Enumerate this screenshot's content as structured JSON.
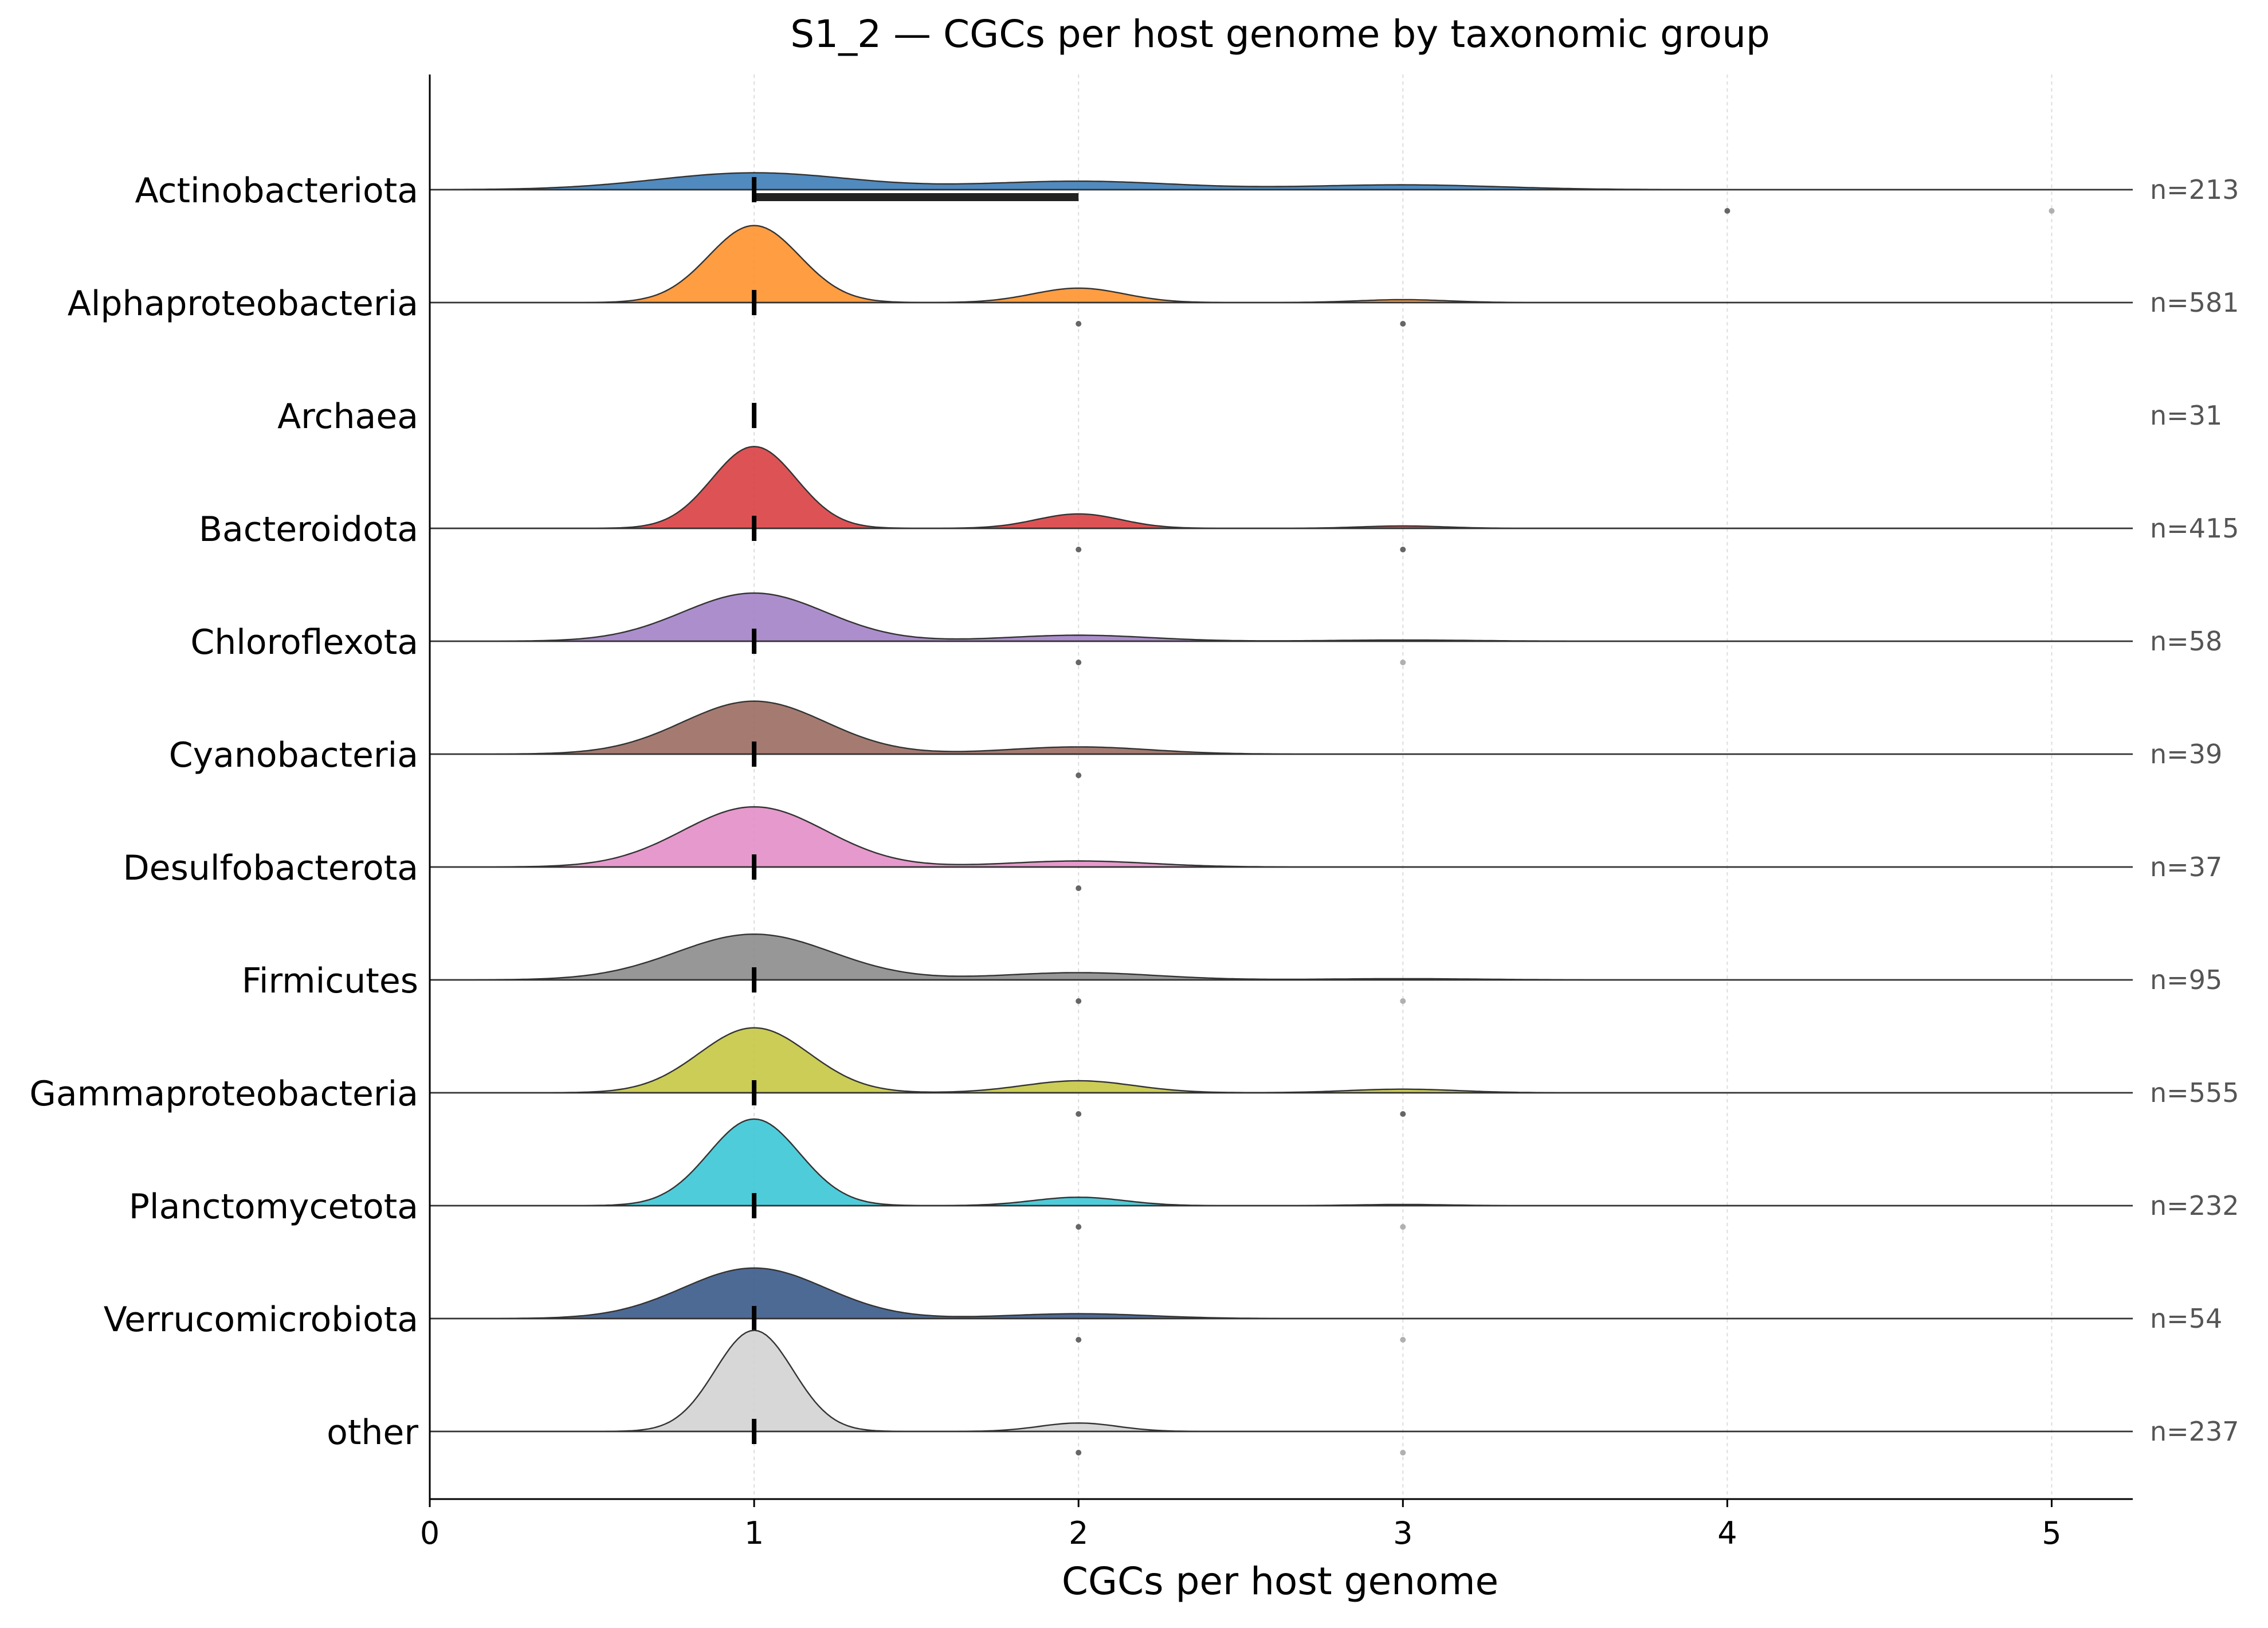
{
  "chart_data": {
    "type": "ridgeline",
    "title": "S1_2 — CGCs per host genome by taxonomic group",
    "xlabel": "CGCs per host genome",
    "ylabel": "",
    "xlim": [
      0,
      5.25
    ],
    "xticks": [
      0,
      1,
      2,
      3,
      4,
      5
    ],
    "grid": "vertical dotted lines at x ticks",
    "groups": [
      {
        "name": "Actinobacteriota",
        "n_label": "n=213",
        "color": "#3d7db8",
        "median": 1,
        "iqr": [
          1,
          2
        ],
        "peaks": [
          {
            "x": 1,
            "h": 0.07,
            "s": 0.3
          },
          {
            "x": 2,
            "h": 0.035,
            "s": 0.3
          },
          {
            "x": 3,
            "h": 0.02,
            "s": 0.3
          }
        ],
        "outliers": [
          4,
          5
        ],
        "outlier_shade": [
          "dark",
          "light"
        ]
      },
      {
        "name": "Alphaproteobacteria",
        "n_label": "n=581",
        "color": "#ff922e",
        "median": 1,
        "iqr": [
          1,
          1
        ],
        "peaks": [
          {
            "x": 1,
            "h": 0.32,
            "s": 0.14
          },
          {
            "x": 2,
            "h": 0.06,
            "s": 0.14
          },
          {
            "x": 3,
            "h": 0.012,
            "s": 0.14
          }
        ],
        "outliers": [
          2,
          3
        ],
        "outlier_shade": [
          "dark",
          "dark"
        ]
      },
      {
        "name": "Archaea",
        "n_label": "n=31",
        "color": "#2ca02c",
        "median": 1,
        "iqr": [
          1,
          1
        ],
        "peaks": [],
        "outliers": [],
        "outlier_shade": []
      },
      {
        "name": "Bacteroidota",
        "n_label": "n=415",
        "color": "#d94043",
        "median": 1,
        "iqr": [
          1,
          1
        ],
        "peaks": [
          {
            "x": 1,
            "h": 0.34,
            "s": 0.13
          },
          {
            "x": 2,
            "h": 0.06,
            "s": 0.13
          },
          {
            "x": 3,
            "h": 0.01,
            "s": 0.13
          }
        ],
        "outliers": [
          2,
          3
        ],
        "outlier_shade": [
          "dark",
          "dark"
        ]
      },
      {
        "name": "Chloroflexota",
        "n_label": "n=58",
        "color": "#a382c8",
        "median": 1,
        "iqr": [
          1,
          1
        ],
        "peaks": [
          {
            "x": 1,
            "h": 0.2,
            "s": 0.22
          },
          {
            "x": 2,
            "h": 0.025,
            "s": 0.22
          },
          {
            "x": 3,
            "h": 0.005,
            "s": 0.22
          }
        ],
        "outliers": [
          2,
          3
        ],
        "outlier_shade": [
          "dark",
          "light"
        ]
      },
      {
        "name": "Cyanobacteria",
        "n_label": "n=39",
        "color": "#9b6d62",
        "median": 1,
        "iqr": [
          1,
          1
        ],
        "peaks": [
          {
            "x": 1,
            "h": 0.22,
            "s": 0.22
          },
          {
            "x": 2,
            "h": 0.03,
            "s": 0.22
          }
        ],
        "outliers": [
          2
        ],
        "outlier_shade": [
          "dark"
        ]
      },
      {
        "name": "Desulfobacterota",
        "n_label": "n=37",
        "color": "#e38ec6",
        "median": 1,
        "iqr": [
          1,
          1
        ],
        "peaks": [
          {
            "x": 1,
            "h": 0.25,
            "s": 0.22
          },
          {
            "x": 2,
            "h": 0.025,
            "s": 0.22
          }
        ],
        "outliers": [
          2
        ],
        "outlier_shade": [
          "dark"
        ]
      },
      {
        "name": "Firmicutes",
        "n_label": "n=95",
        "color": "#8c8c8c",
        "median": 1,
        "iqr": [
          1,
          1
        ],
        "peaks": [
          {
            "x": 1,
            "h": 0.19,
            "s": 0.24
          },
          {
            "x": 2,
            "h": 0.03,
            "s": 0.24
          },
          {
            "x": 3,
            "h": 0.005,
            "s": 0.24
          }
        ],
        "outliers": [
          2,
          3
        ],
        "outlier_shade": [
          "dark",
          "light"
        ]
      },
      {
        "name": "Gammaproteobacteria",
        "n_label": "n=555",
        "color": "#c5c844",
        "median": 1,
        "iqr": [
          1,
          1
        ],
        "peaks": [
          {
            "x": 1,
            "h": 0.27,
            "s": 0.17
          },
          {
            "x": 2,
            "h": 0.05,
            "s": 0.17
          },
          {
            "x": 3,
            "h": 0.015,
            "s": 0.17
          }
        ],
        "outliers": [
          2,
          3
        ],
        "outlier_shade": [
          "dark",
          "dark"
        ]
      },
      {
        "name": "Planctomycetota",
        "n_label": "n=232",
        "color": "#3cc6d6",
        "median": 1,
        "iqr": [
          1,
          1
        ],
        "peaks": [
          {
            "x": 1,
            "h": 0.36,
            "s": 0.14
          },
          {
            "x": 2,
            "h": 0.035,
            "s": 0.14
          },
          {
            "x": 3,
            "h": 0.005,
            "s": 0.14
          }
        ],
        "outliers": [
          2,
          3
        ],
        "outlier_shade": [
          "dark",
          "light"
        ]
      },
      {
        "name": "Verrucomicrobiota",
        "n_label": "n=54",
        "color": "#3a5a8a",
        "median": 1,
        "iqr": [
          1,
          1
        ],
        "peaks": [
          {
            "x": 1,
            "h": 0.21,
            "s": 0.22
          },
          {
            "x": 2,
            "h": 0.02,
            "s": 0.22
          }
        ],
        "outliers": [
          2,
          3
        ],
        "outlier_shade": [
          "dark",
          "light"
        ]
      },
      {
        "name": "other",
        "n_label": "n=237",
        "color": "#d3d3d3",
        "median": 1,
        "iqr": [
          1,
          1
        ],
        "peaks": [
          {
            "x": 1,
            "h": 0.42,
            "s": 0.12
          },
          {
            "x": 2,
            "h": 0.035,
            "s": 0.12
          }
        ],
        "outliers": [
          2,
          3
        ],
        "outlier_shade": [
          "dark",
          "light"
        ]
      }
    ]
  }
}
